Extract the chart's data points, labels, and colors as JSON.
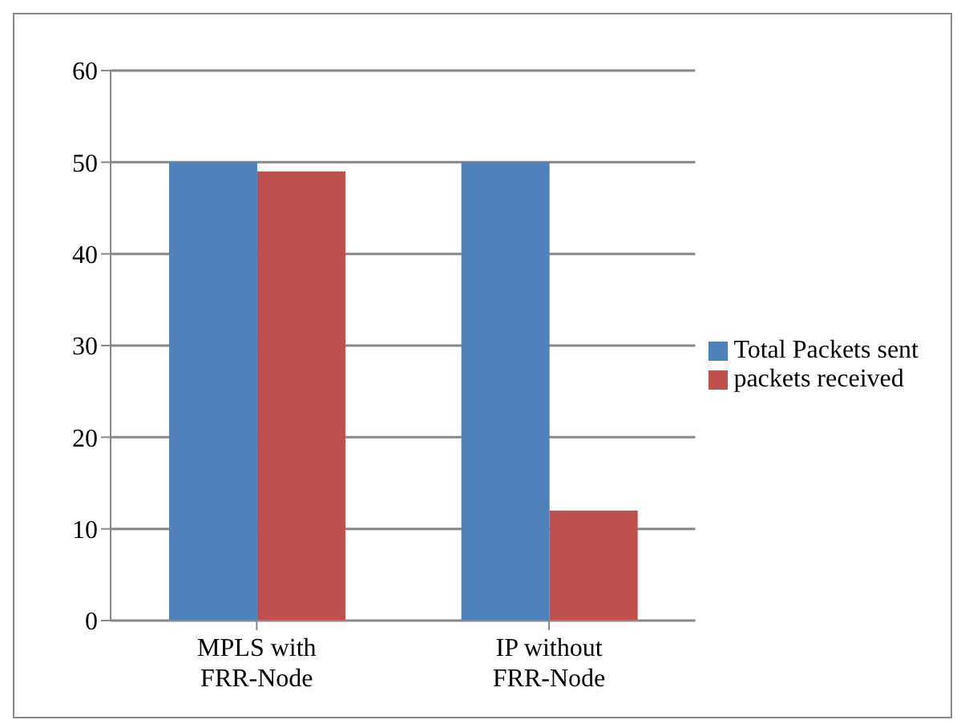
{
  "chart_data": {
    "type": "bar",
    "categories": [
      "MPLS with FRR-Node",
      "IP without FRR-Node"
    ],
    "series": [
      {
        "name": "Total Packets sent",
        "color": "#4f81bd",
        "values": [
          50,
          50
        ]
      },
      {
        "name": "packets received",
        "color": "#c0504d",
        "values": [
          49,
          12
        ]
      }
    ],
    "ylim": [
      0,
      60
    ],
    "yticks": [
      0,
      10,
      20,
      30,
      40,
      50,
      60
    ],
    "grid": "y",
    "legend": "right"
  }
}
